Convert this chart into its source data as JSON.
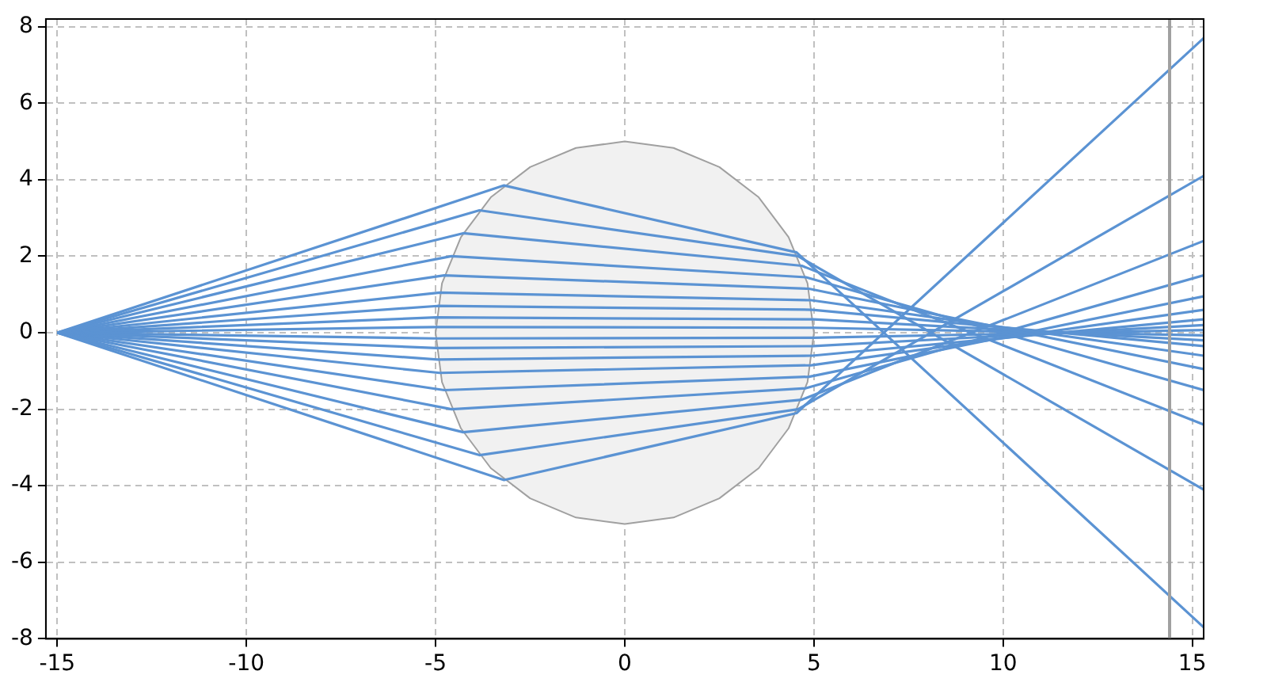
{
  "chart_data": {
    "type": "line",
    "xlim": [
      -15.3,
      15.3
    ],
    "ylim": [
      -8,
      8.2
    ],
    "xticks": [
      -15,
      -10,
      -5,
      0,
      5,
      10,
      15
    ],
    "yticks": [
      -8,
      -6,
      -4,
      -2,
      0,
      2,
      4,
      6,
      8
    ],
    "grid": true,
    "legend": false,
    "marker": "none",
    "line_style": "solid",
    "ref_lines": [
      {
        "axis": "x",
        "value": 14.4,
        "color": "#a0a0a0"
      }
    ],
    "series": [
      {
        "type": "area",
        "color": "#a0a0a0",
        "x": [
          5,
          4.83,
          4.33,
          3.54,
          2.5,
          1.29,
          0,
          -1.29,
          -2.5,
          -3.54,
          -4.33,
          -4.83,
          -5,
          -4.83,
          -4.33,
          -3.54,
          -2.5,
          -1.29,
          0,
          1.29,
          2.5,
          3.54,
          4.33,
          4.83,
          5
        ],
        "values": [
          0,
          1.29,
          2.5,
          3.54,
          4.33,
          4.83,
          5,
          4.83,
          4.33,
          3.54,
          2.5,
          1.29,
          0,
          -1.29,
          -2.5,
          -3.54,
          -4.33,
          -4.83,
          -5,
          -4.83,
          -4.33,
          -3.54,
          -2.5,
          -1.29,
          0
        ]
      },
      {
        "color": "#5b93d3",
        "x": [
          -15,
          -3.19,
          4.54,
          15.3
        ],
        "values": [
          0,
          3.85,
          2.1,
          -7.7
        ]
      },
      {
        "color": "#5b93d3",
        "x": [
          -15,
          -3.84,
          4.58,
          15.3
        ],
        "values": [
          0,
          3.2,
          2.0,
          -4.1
        ]
      },
      {
        "color": "#5b93d3",
        "x": [
          -15,
          -4.27,
          4.68,
          15.3
        ],
        "values": [
          0,
          2.6,
          1.75,
          -2.4
        ]
      },
      {
        "color": "#5b93d3",
        "x": [
          -15,
          -4.58,
          4.79,
          15.3
        ],
        "values": [
          0,
          2.0,
          1.45,
          -1.5
        ]
      },
      {
        "color": "#5b93d3",
        "x": [
          -15,
          -4.77,
          4.87,
          15.3
        ],
        "values": [
          0,
          1.5,
          1.15,
          -0.95
        ]
      },
      {
        "color": "#5b93d3",
        "x": [
          -15,
          -4.89,
          4.93,
          15.3
        ],
        "values": [
          0,
          1.05,
          0.85,
          -0.6
        ]
      },
      {
        "color": "#5b93d3",
        "x": [
          -15,
          -4.95,
          4.96,
          15.3
        ],
        "values": [
          0,
          0.7,
          0.6,
          -0.35
        ]
      },
      {
        "color": "#5b93d3",
        "x": [
          -15,
          -4.98,
          4.99,
          15.3
        ],
        "values": [
          0,
          0.4,
          0.35,
          -0.2
        ]
      },
      {
        "color": "#5b93d3",
        "x": [
          -15,
          -5,
          5,
          15.3
        ],
        "values": [
          0,
          0.15,
          0.13,
          -0.07
        ]
      },
      {
        "color": "#5b93d3",
        "x": [
          -15,
          -5,
          5,
          15.3
        ],
        "values": [
          0,
          -0.15,
          -0.13,
          0.07
        ]
      },
      {
        "color": "#5b93d3",
        "x": [
          -15,
          -4.98,
          4.99,
          15.3
        ],
        "values": [
          0,
          -0.4,
          -0.35,
          0.2
        ]
      },
      {
        "color": "#5b93d3",
        "x": [
          -15,
          -4.95,
          4.96,
          15.3
        ],
        "values": [
          0,
          -0.7,
          -0.6,
          0.35
        ]
      },
      {
        "color": "#5b93d3",
        "x": [
          -15,
          -4.89,
          4.93,
          15.3
        ],
        "values": [
          0,
          -1.05,
          -0.85,
          0.6
        ]
      },
      {
        "color": "#5b93d3",
        "x": [
          -15,
          -4.77,
          4.87,
          15.3
        ],
        "values": [
          0,
          -1.5,
          -1.15,
          0.95
        ]
      },
      {
        "color": "#5b93d3",
        "x": [
          -15,
          -4.58,
          4.79,
          15.3
        ],
        "values": [
          0,
          -2.0,
          -1.45,
          1.5
        ]
      },
      {
        "color": "#5b93d3",
        "x": [
          -15,
          -4.27,
          4.68,
          15.3
        ],
        "values": [
          0,
          -2.6,
          -1.75,
          2.4
        ]
      },
      {
        "color": "#5b93d3",
        "x": [
          -15,
          -3.84,
          4.58,
          15.3
        ],
        "values": [
          0,
          -3.2,
          -2.0,
          4.1
        ]
      },
      {
        "color": "#5b93d3",
        "x": [
          -15,
          -3.19,
          4.54,
          15.3
        ],
        "values": [
          0,
          -3.85,
          -2.1,
          7.7
        ]
      }
    ]
  }
}
